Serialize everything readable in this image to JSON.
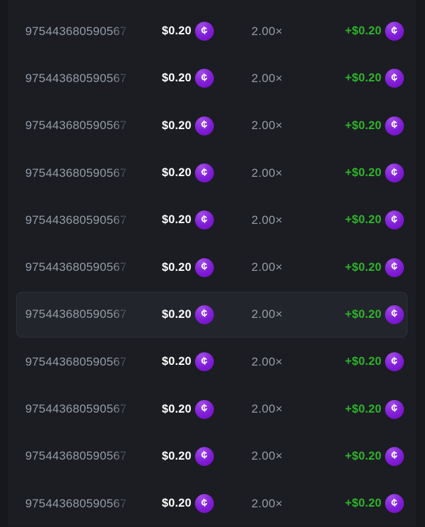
{
  "colors": {
    "page_background": "#17181c",
    "table_surface": "#1b1d22",
    "row_highlight": "#23252c",
    "muted_text": "#959ca8",
    "win_green": "#2fb42a",
    "coin_purple": "#7a12ce"
  },
  "currency": {
    "icon_name": "stake-cash-coin-icon",
    "icon_glyph": "¢"
  },
  "bets_table": {
    "rows": [
      {
        "bet_id": "975443680590567",
        "bet_amount": "$0.20",
        "multiplier": "2.00×",
        "payout": "+$0.20",
        "highlighted": false
      },
      {
        "bet_id": "975443680590567",
        "bet_amount": "$0.20",
        "multiplier": "2.00×",
        "payout": "+$0.20",
        "highlighted": false
      },
      {
        "bet_id": "975443680590567",
        "bet_amount": "$0.20",
        "multiplier": "2.00×",
        "payout": "+$0.20",
        "highlighted": false
      },
      {
        "bet_id": "975443680590567",
        "bet_amount": "$0.20",
        "multiplier": "2.00×",
        "payout": "+$0.20",
        "highlighted": false
      },
      {
        "bet_id": "975443680590567",
        "bet_amount": "$0.20",
        "multiplier": "2.00×",
        "payout": "+$0.20",
        "highlighted": false
      },
      {
        "bet_id": "975443680590567",
        "bet_amount": "$0.20",
        "multiplier": "2.00×",
        "payout": "+$0.20",
        "highlighted": false
      },
      {
        "bet_id": "975443680590567",
        "bet_amount": "$0.20",
        "multiplier": "2.00×",
        "payout": "+$0.20",
        "highlighted": true
      },
      {
        "bet_id": "975443680590567",
        "bet_amount": "$0.20",
        "multiplier": "2.00×",
        "payout": "+$0.20",
        "highlighted": false
      },
      {
        "bet_id": "975443680590567",
        "bet_amount": "$0.20",
        "multiplier": "2.00×",
        "payout": "+$0.20",
        "highlighted": false
      },
      {
        "bet_id": "975443680590567",
        "bet_amount": "$0.20",
        "multiplier": "2.00×",
        "payout": "+$0.20",
        "highlighted": false
      },
      {
        "bet_id": "975443680590567",
        "bet_amount": "$0.20",
        "multiplier": "2.00×",
        "payout": "+$0.20",
        "highlighted": false
      }
    ]
  }
}
